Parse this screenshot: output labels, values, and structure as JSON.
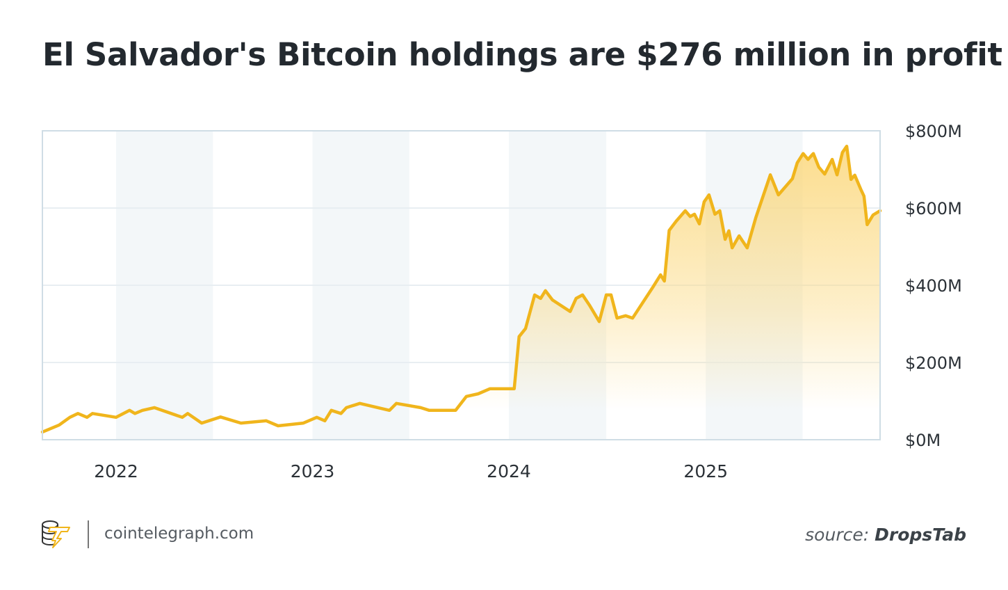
{
  "title": "El Salvador's Bitcoin holdings are $276 million in profit",
  "footer": {
    "site": "cointelegraph.com",
    "source_label": "source:",
    "source_name": "DropsTab",
    "logo_icon": "cointelegraph-coin-stack-lightning-icon"
  },
  "colors": {
    "line": "#f0b51c",
    "fill": "#fbd77a",
    "band": "#f3f7f9",
    "grid": "#e8eef2",
    "border": "#cfdde5"
  },
  "chart_data": {
    "type": "area",
    "title": "El Salvador's Bitcoin holdings are $276 million in profit",
    "xlabel": "",
    "ylabel": "",
    "xlim": [
      "2021-08-17",
      "2025-11-21"
    ],
    "ylim": [
      0,
      800
    ],
    "y_unit": "$M",
    "y_axis_position": "right",
    "grid": true,
    "shaded_bands": [
      [
        "2022-01-01",
        "2022-06-30"
      ],
      [
        "2023-01-01",
        "2023-06-30"
      ],
      [
        "2024-01-01",
        "2024-06-30"
      ],
      [
        "2025-01-01",
        "2025-06-30"
      ]
    ],
    "x_ticks": [
      {
        "date": "2022-01-01",
        "label": "2022"
      },
      {
        "date": "2023-01-01",
        "label": "2023"
      },
      {
        "date": "2024-01-01",
        "label": "2024"
      },
      {
        "date": "2025-01-01",
        "label": "2025"
      }
    ],
    "y_ticks": [
      {
        "value": 0,
        "label": "$0M"
      },
      {
        "value": 200,
        "label": "$200M"
      },
      {
        "value": 400,
        "label": "$400M"
      },
      {
        "value": 600,
        "label": "$600M"
      },
      {
        "value": 800,
        "label": "$800M"
      }
    ],
    "series": [
      {
        "points": [
          [
            "2021-08-17",
            20
          ],
          [
            "2021-09-17",
            38
          ],
          [
            "2021-10-07",
            58
          ],
          [
            "2021-10-22",
            68
          ],
          [
            "2021-11-08",
            58
          ],
          [
            "2021-11-18",
            68
          ],
          [
            "2022-01-01",
            58
          ],
          [
            "2022-01-26",
            76
          ],
          [
            "2022-02-05",
            68
          ],
          [
            "2022-02-19",
            76
          ],
          [
            "2022-03-13",
            83
          ],
          [
            "2022-05-04",
            58
          ],
          [
            "2022-05-14",
            68
          ],
          [
            "2022-06-09",
            43
          ],
          [
            "2022-07-14",
            59
          ],
          [
            "2022-08-21",
            43
          ],
          [
            "2022-10-07",
            49
          ],
          [
            "2022-10-29",
            36
          ],
          [
            "2022-12-15",
            43
          ],
          [
            "2023-01-09",
            58
          ],
          [
            "2023-01-24",
            49
          ],
          [
            "2023-02-05",
            76
          ],
          [
            "2023-02-23",
            68
          ],
          [
            "2023-03-05",
            83
          ],
          [
            "2023-03-30",
            94
          ],
          [
            "2023-05-24",
            76
          ],
          [
            "2023-06-06",
            94
          ],
          [
            "2023-07-21",
            83
          ],
          [
            "2023-08-06",
            76
          ],
          [
            "2023-09-24",
            76
          ],
          [
            "2023-10-14",
            112
          ],
          [
            "2023-11-05",
            119
          ],
          [
            "2023-11-27",
            132
          ],
          [
            "2024-01-11",
            132
          ],
          [
            "2024-01-20",
            267
          ],
          [
            "2024-02-01",
            288
          ],
          [
            "2024-02-18",
            375
          ],
          [
            "2024-02-29",
            366
          ],
          [
            "2024-03-09",
            386
          ],
          [
            "2024-03-22",
            362
          ],
          [
            "2024-04-24",
            332
          ],
          [
            "2024-05-05",
            366
          ],
          [
            "2024-05-17",
            375
          ],
          [
            "2024-05-30",
            348
          ],
          [
            "2024-06-17",
            306
          ],
          [
            "2024-06-30",
            375
          ],
          [
            "2024-07-09",
            375
          ],
          [
            "2024-07-20",
            315
          ],
          [
            "2024-08-05",
            321
          ],
          [
            "2024-08-18",
            315
          ],
          [
            "2024-09-26",
            398
          ],
          [
            "2024-10-09",
            427
          ],
          [
            "2024-10-16",
            411
          ],
          [
            "2024-10-25",
            542
          ],
          [
            "2024-11-07",
            566
          ],
          [
            "2024-11-24",
            593
          ],
          [
            "2024-12-03",
            578
          ],
          [
            "2024-12-11",
            584
          ],
          [
            "2024-12-20",
            559
          ],
          [
            "2024-12-29",
            616
          ],
          [
            "2025-01-07",
            634
          ],
          [
            "2025-01-18",
            584
          ],
          [
            "2025-01-27",
            593
          ],
          [
            "2025-02-06",
            519
          ],
          [
            "2025-02-13",
            541
          ],
          [
            "2025-02-19",
            497
          ],
          [
            "2025-03-04",
            528
          ],
          [
            "2025-03-19",
            497
          ],
          [
            "2025-04-04",
            575
          ],
          [
            "2025-05-01",
            686
          ],
          [
            "2025-05-16",
            634
          ],
          [
            "2025-06-11",
            676
          ],
          [
            "2025-06-20",
            717
          ],
          [
            "2025-07-01",
            741
          ],
          [
            "2025-07-10",
            726
          ],
          [
            "2025-07-20",
            741
          ],
          [
            "2025-07-30",
            706
          ],
          [
            "2025-08-10",
            688
          ],
          [
            "2025-08-24",
            726
          ],
          [
            "2025-09-02",
            686
          ],
          [
            "2025-09-12",
            744
          ],
          [
            "2025-09-20",
            760
          ],
          [
            "2025-09-28",
            674
          ],
          [
            "2025-10-05",
            685
          ],
          [
            "2025-10-16",
            649
          ],
          [
            "2025-10-22",
            631
          ],
          [
            "2025-10-28",
            557
          ],
          [
            "2025-11-08",
            582
          ],
          [
            "2025-11-21",
            593
          ]
        ]
      }
    ]
  }
}
